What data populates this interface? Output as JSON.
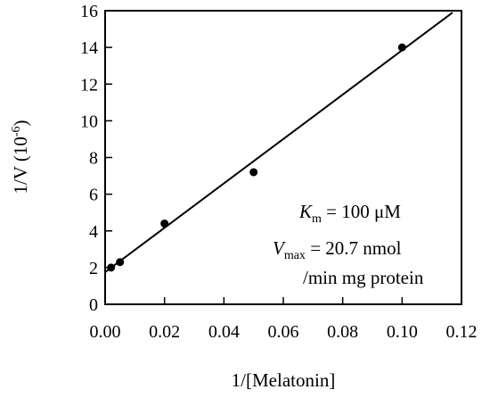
{
  "chart_data": {
    "type": "scatter",
    "xlabel": "1/[Melatonin]",
    "ylabel_main": "1/V (10",
    "ylabel_exp": "-6",
    "ylabel_close": ")",
    "xlim": [
      0.0,
      0.12
    ],
    "ylim": [
      0,
      16
    ],
    "x_ticks": [
      0.0,
      0.02,
      0.04,
      0.06,
      0.08,
      0.1,
      0.12
    ],
    "x_tick_labels": [
      "0.00",
      "0.02",
      "0.04",
      "0.06",
      "0.08",
      "0.10",
      "0.12"
    ],
    "y_ticks": [
      0,
      2,
      4,
      6,
      8,
      10,
      12,
      14,
      16
    ],
    "y_tick_labels": [
      "0",
      "2",
      "4",
      "6",
      "8",
      "10",
      "12",
      "14",
      "16"
    ],
    "grid": false,
    "points": [
      {
        "x": 0.002,
        "y": 2.0
      },
      {
        "x": 0.005,
        "y": 2.3
      },
      {
        "x": 0.02,
        "y": 4.4
      },
      {
        "x": 0.05,
        "y": 7.2
      },
      {
        "x": 0.1,
        "y": 14.0
      }
    ],
    "fit_line": {
      "x": [
        0.0,
        0.117
      ],
      "y": [
        1.75,
        15.9
      ]
    },
    "annotations": {
      "km_symbol": "K",
      "km_sub": "m",
      "km_value": " = 100 μM",
      "vmax_symbol": "V",
      "vmax_sub": "max",
      "vmax_value": " = 20.7 nmol",
      "vmax_units": "/min mg protein"
    }
  }
}
